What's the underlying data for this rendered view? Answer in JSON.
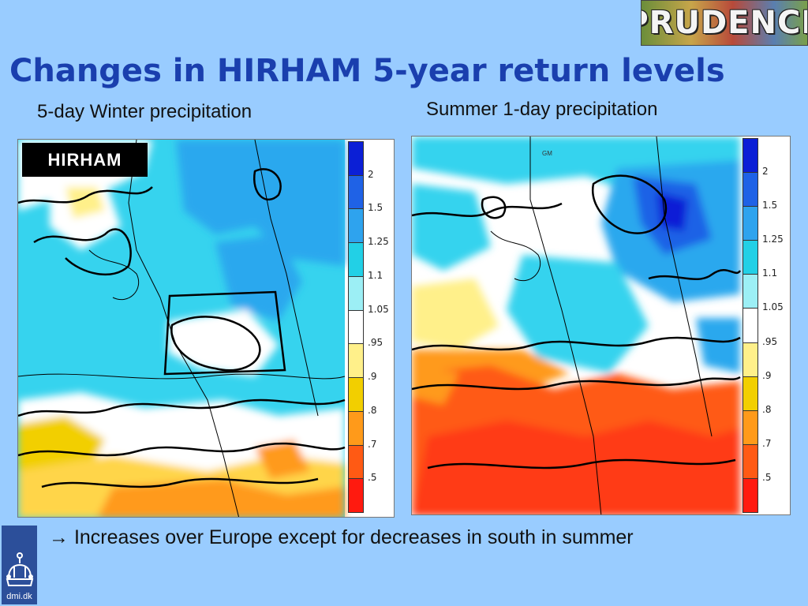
{
  "logo": {
    "text": "PRUDENCE",
    "icon": "prudence-logo"
  },
  "title": "Changes in HIRHAM 5-year return levels",
  "left_panel": {
    "subtitle": "5-day Winter precipitation",
    "tag": "HIRHAM",
    "colorbar": {
      "labels": [
        "2",
        "1.5",
        "1.25",
        "1.1",
        "1.05",
        ".95",
        ".9",
        ".8",
        ".7",
        ".5"
      ],
      "colors": [
        "#0b1fd6",
        "#1f62e6",
        "#2ea3ee",
        "#22d0e6",
        "#9ceff5",
        "#ffffff",
        "#fff08a",
        "#f2cf00",
        "#ff9a1a",
        "#ff5a14",
        "#ff1a0f"
      ]
    }
  },
  "right_panel": {
    "subtitle": "Summer 1-day precipitation",
    "map_label": "GM",
    "colorbar": {
      "labels": [
        "2",
        "1.5",
        "1.25",
        "1.1",
        "1.05",
        ".95",
        ".9",
        ".8",
        ".7",
        ".5"
      ],
      "colors": [
        "#0b1fd6",
        "#1f62e6",
        "#2ea3ee",
        "#22d0e6",
        "#9ceff5",
        "#ffffff",
        "#fff08a",
        "#f2cf00",
        "#ff9a1a",
        "#ff5a14",
        "#ff1a0f"
      ]
    }
  },
  "bullet": {
    "icon": "arrow-right-icon",
    "arrow": "→",
    "text": "Increases over Europe except for decreases in south in summer"
  },
  "footer_logo": {
    "text": "dmi.dk",
    "icon": "crown-icon"
  }
}
